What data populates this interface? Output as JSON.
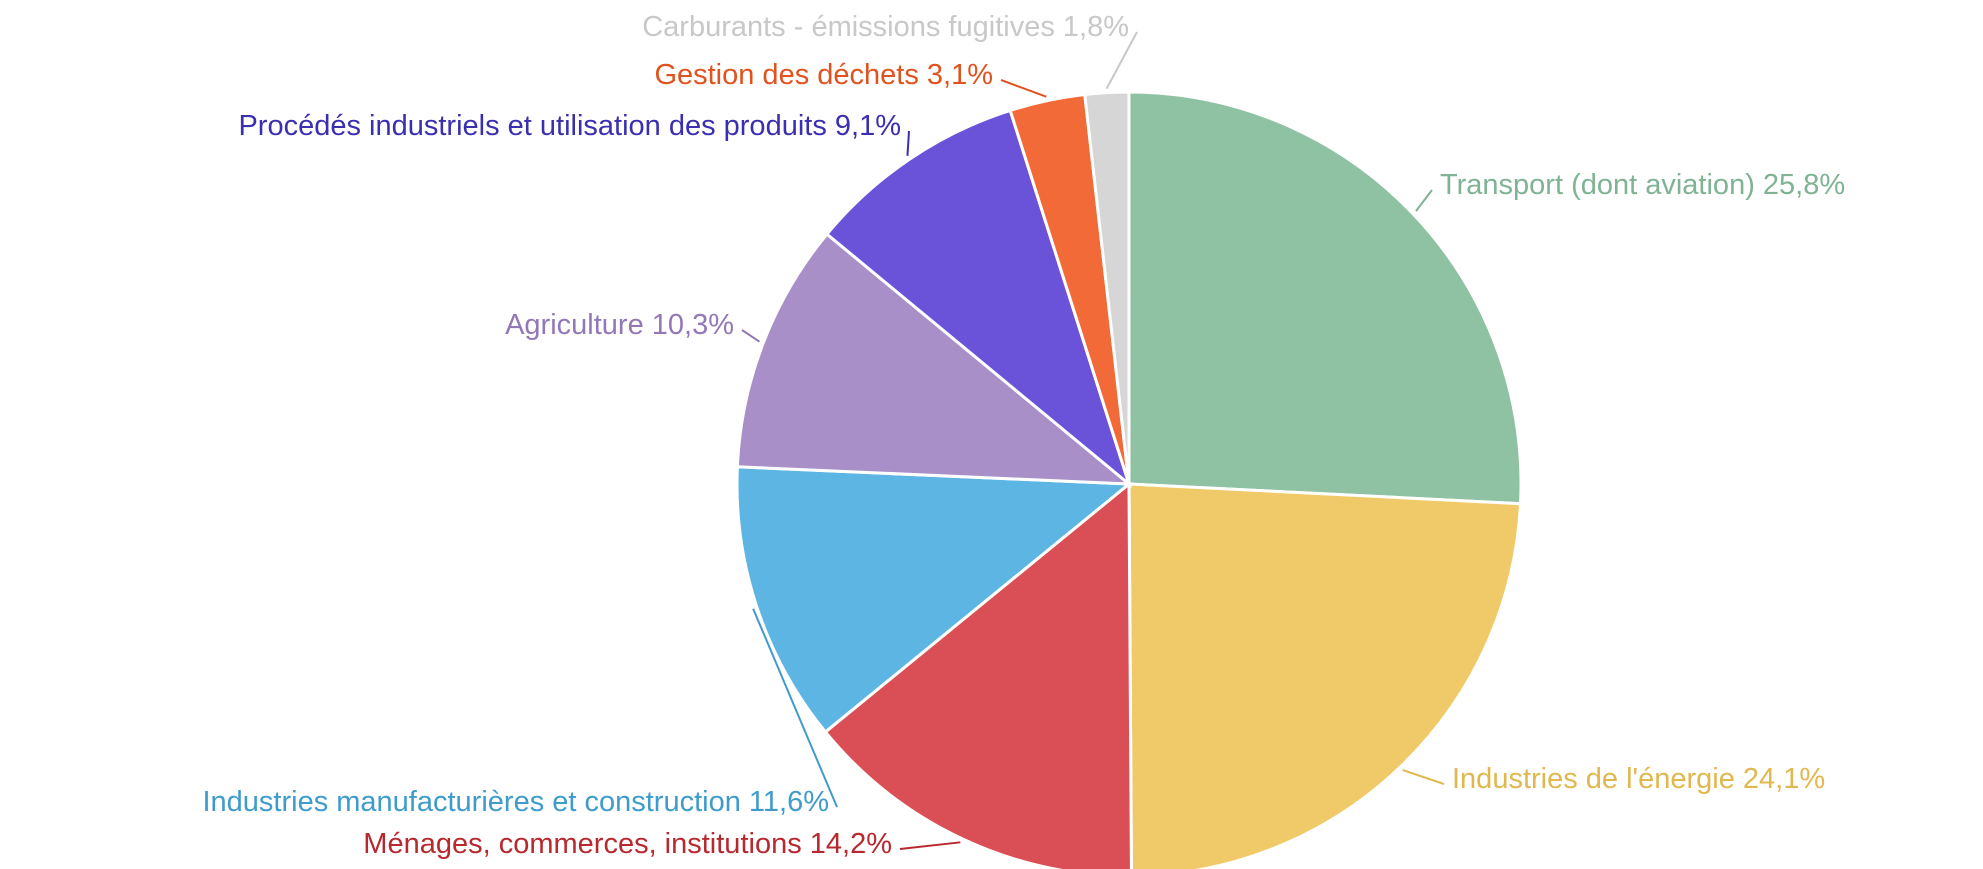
{
  "chart_data": {
    "type": "pie",
    "categories": [
      "Transport (dont aviation)",
      "Industries de l'énergie",
      "Ménages, commerces, institutions",
      "Industries manufacturières et construction",
      "Agriculture",
      "Procédés industriels et utilisation des produits",
      "Gestion des déchets",
      "Carburants - émissions fugitives"
    ],
    "values": [
      25.8,
      24.1,
      14.2,
      11.6,
      10.3,
      9.1,
      3.1,
      1.8
    ],
    "value_labels": [
      "25,8%",
      "24,1%",
      "14,2%",
      "11,6%",
      "10,3%",
      "9,1%",
      "3,1%",
      "1,8%"
    ],
    "colors": [
      "#8fc1a3",
      "#f0ca69",
      "#d94f55",
      "#5db5e3",
      "#a98fc8",
      "#6a52d9",
      "#f26a37",
      "#d6d6d6"
    ]
  }
}
